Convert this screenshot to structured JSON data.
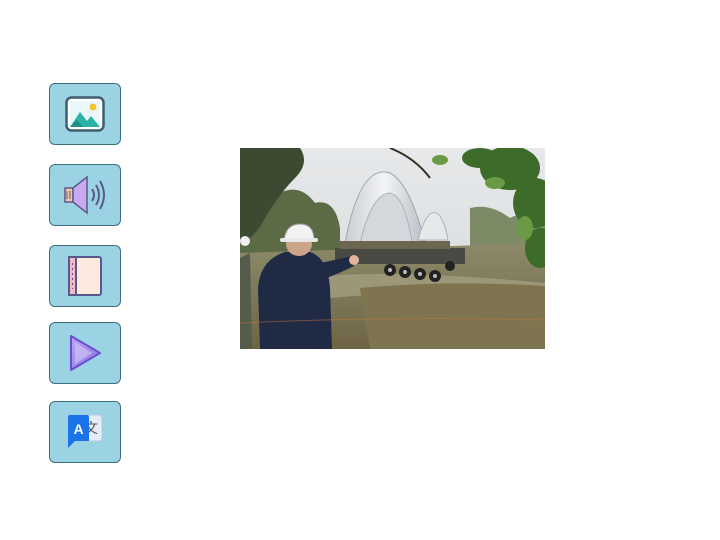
{
  "toolbar": {
    "buttons": [
      {
        "id": "image",
        "icon": "image-icon"
      },
      {
        "id": "audio",
        "icon": "speaker-icon"
      },
      {
        "id": "book",
        "icon": "book-icon"
      },
      {
        "id": "play",
        "icon": "play-icon"
      },
      {
        "id": "translate",
        "icon": "translate-icon",
        "glyph_latin": "A",
        "glyph_cjk": "文"
      }
    ]
  },
  "colors": {
    "button_fill": "#9bd3e4",
    "button_border": "#3d6f82",
    "translate_blue": "#1a73e8",
    "play_purple": "#8a72e0",
    "book_pink": "#f4b7c8"
  },
  "main": {
    "photo": {
      "subject": "worker-in-hard-hat-watching-arched-bandshell-transport"
    }
  }
}
